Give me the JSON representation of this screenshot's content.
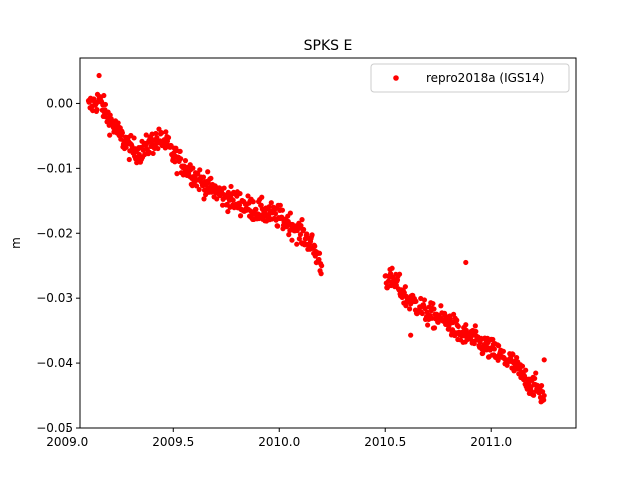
{
  "chart_data": {
    "type": "scatter",
    "title": "SPKS E",
    "xlabel": "",
    "ylabel": "m",
    "xlim": [
      2009.06,
      2011.4
    ],
    "ylim": [
      -0.05,
      0.007
    ],
    "x_ticks": [
      2009.0,
      2009.5,
      2010.0,
      2010.5,
      2011.0
    ],
    "x_tick_labels": [
      "2009.0",
      "2009.5",
      "2010.0",
      "2010.5",
      "2011.0"
    ],
    "y_ticks": [
      0.0,
      -0.01,
      -0.02,
      -0.03,
      -0.04,
      -0.05
    ],
    "y_tick_labels": [
      "0.00",
      "−0.01",
      "−0.02",
      "−0.03",
      "−0.04",
      "−0.05"
    ],
    "grid": false,
    "legend_position": "top-right",
    "marker_color": "#ff0000",
    "series": [
      {
        "name": "repro2018a (IGS14)",
        "segments": [
          {
            "x": [
              2009.1,
              2009.15,
              2009.2,
              2009.25,
              2009.3,
              2009.35,
              2009.4,
              2009.45,
              2009.5,
              2009.55,
              2009.6,
              2009.65,
              2009.7,
              2009.75,
              2009.8,
              2009.85,
              2009.9,
              2009.95,
              2010.0,
              2010.05,
              2010.1,
              2010.15,
              2010.2
            ],
            "y": [
              -0.0005,
              0.0005,
              -0.0025,
              -0.005,
              -0.007,
              -0.0075,
              -0.006,
              -0.0055,
              -0.008,
              -0.0095,
              -0.011,
              -0.0125,
              -0.0135,
              -0.0145,
              -0.015,
              -0.016,
              -0.0165,
              -0.017,
              -0.0175,
              -0.0185,
              -0.02,
              -0.0215,
              -0.025
            ]
          },
          {
            "x": [
              2010.5,
              2010.55,
              2010.6,
              2010.65,
              2010.7,
              2010.75,
              2010.8,
              2010.85,
              2010.9,
              2010.95,
              2011.0,
              2011.05,
              2011.1,
              2011.15,
              2011.2,
              2011.25
            ],
            "y": [
              -0.027,
              -0.0275,
              -0.03,
              -0.031,
              -0.0325,
              -0.033,
              -0.0335,
              -0.0355,
              -0.036,
              -0.037,
              -0.038,
              -0.039,
              -0.04,
              -0.042,
              -0.0435,
              -0.045
            ]
          }
        ],
        "outliers": [
          {
            "x": 2010.88,
            "y": -0.0245
          },
          {
            "x": 2010.62,
            "y": -0.0357
          },
          {
            "x": 2009.15,
            "y": 0.0043
          },
          {
            "x": 2011.25,
            "y": -0.0395
          }
        ]
      }
    ]
  }
}
